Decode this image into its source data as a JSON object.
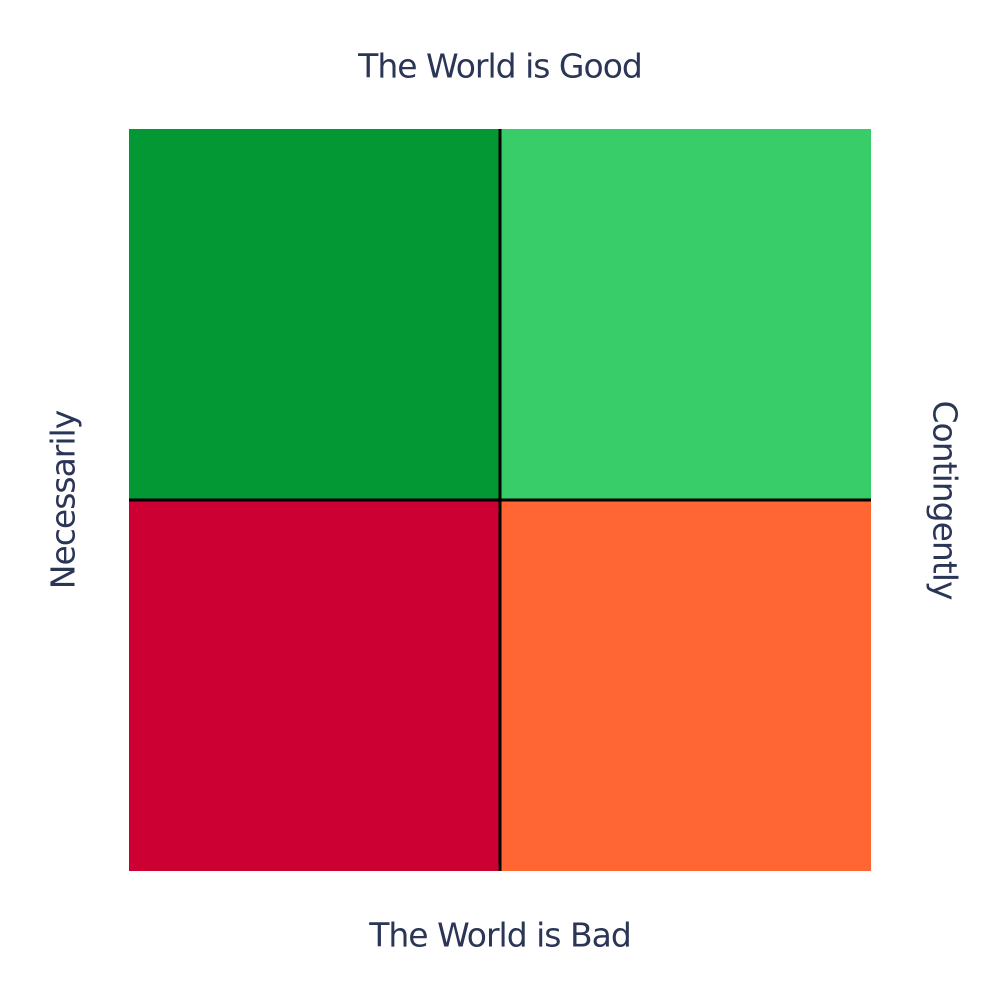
{
  "axes": {
    "top": "The World is Good",
    "bottom": "The World is Bad",
    "left": "Necessarily",
    "right": "Contingently"
  }
}
